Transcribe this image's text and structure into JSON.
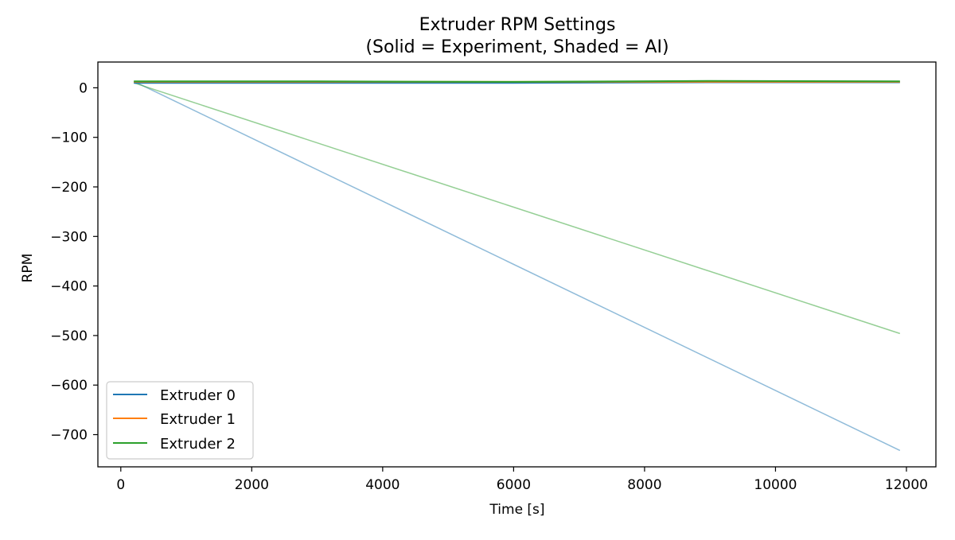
{
  "chart_data": {
    "type": "line",
    "title": "Extruder RPM Settings",
    "subtitle": "(Solid = Experiment, Shaded = AI)",
    "xlabel": "Time [s]",
    "ylabel": "RPM",
    "xlim": [
      -350,
      12450
    ],
    "ylim": [
      -765,
      52
    ],
    "xticks": [
      0,
      2000,
      4000,
      6000,
      8000,
      10000,
      12000
    ],
    "xtick_labels": [
      "0",
      "2000",
      "4000",
      "6000",
      "8000",
      "10000",
      "12000"
    ],
    "yticks": [
      0,
      -100,
      -200,
      -300,
      -400,
      -500,
      -600,
      -700
    ],
    "ytick_labels": [
      "0",
      "−100",
      "−200",
      "−300",
      "−400",
      "−500",
      "−600",
      "−700"
    ],
    "grid": false,
    "legend_position": "lower-left",
    "series": [
      {
        "name": "Extruder 0",
        "kind": "experiment",
        "color": "#1f77b4",
        "x": [
          200,
          3000,
          6000,
          9000,
          11900
        ],
        "y": [
          10,
          10,
          10,
          11,
          11
        ]
      },
      {
        "name": "Extruder 1",
        "kind": "experiment",
        "color": "#ff7f0e",
        "x": [
          200,
          3000,
          6000,
          9000,
          11900
        ],
        "y": [
          12,
          12,
          12,
          12,
          12
        ]
      },
      {
        "name": "Extruder 2",
        "kind": "experiment",
        "color": "#2ca02c",
        "x": [
          200,
          3000,
          6000,
          7800,
          9000,
          11900
        ],
        "y": [
          13,
          13,
          12,
          13,
          14,
          13
        ]
      },
      {
        "kind": "ai",
        "color": "#1f77b4",
        "opacity": 0.5,
        "x": [
          200,
          11900
        ],
        "y": [
          13,
          -732
        ]
      },
      {
        "kind": "ai",
        "color": "#2ca02c",
        "opacity": 0.5,
        "x": [
          200,
          11900
        ],
        "y": [
          10,
          -496
        ]
      }
    ]
  }
}
